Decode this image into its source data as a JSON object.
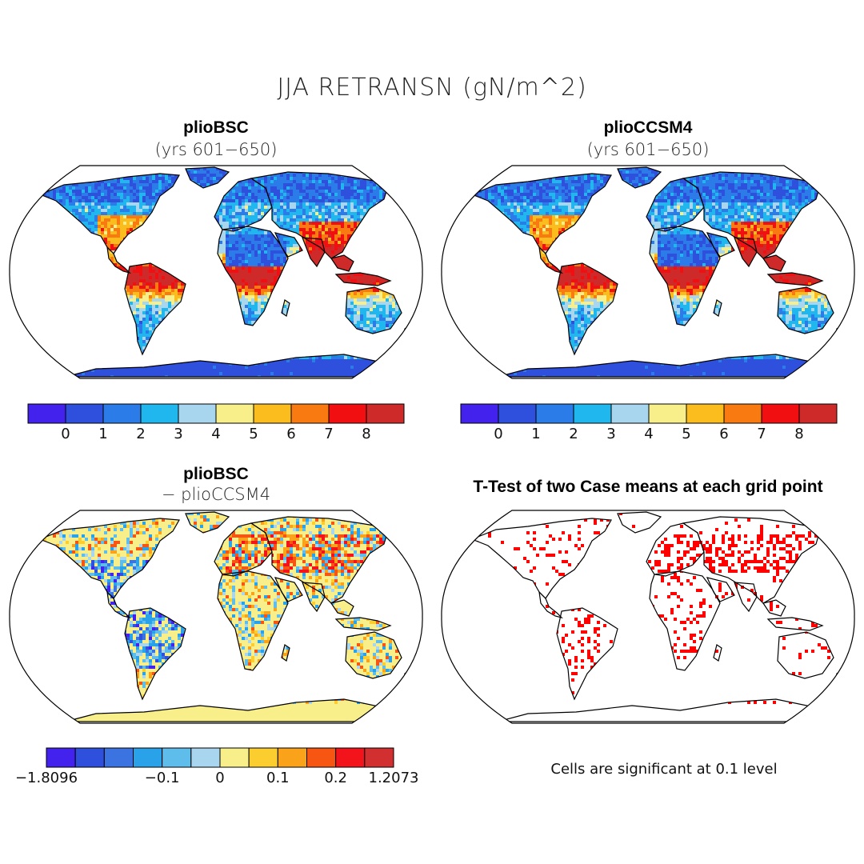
{
  "title": "JJA RETRANSN (gN/m^2)",
  "panels": [
    {
      "id": "bsc",
      "title": "plioBSC",
      "subtitle": "(yrs 601−650)"
    },
    {
      "id": "ccsm4",
      "title": "plioCCSM4",
      "subtitle": "(yrs 601−650)"
    },
    {
      "id": "diff",
      "title": "plioBSC",
      "subtitle": "− plioCCSM4"
    },
    {
      "id": "ttest",
      "title": "T-Test of two Case means at each grid point",
      "subtitle": ""
    }
  ],
  "colorbar_abs": {
    "colors": [
      "#4422ee",
      "#2f4fdd",
      "#2b7ce8",
      "#20b6ee",
      "#a8d6ef",
      "#f8ef8a",
      "#fbbd1e",
      "#f97a10",
      "#f20f12",
      "#cf2a2a"
    ],
    "labels": [
      "0",
      "1",
      "2",
      "3",
      "4",
      "5",
      "6",
      "7",
      "8"
    ]
  },
  "colorbar_diff": {
    "colors": [
      "#4422ee",
      "#2f4fdd",
      "#3b74e0",
      "#2aa2ea",
      "#5fbdeb",
      "#a8d6ef",
      "#f8ef8a",
      "#fbcd2e",
      "#f9a21a",
      "#f75512",
      "#f2141a",
      "#d23030"
    ],
    "labels": [
      "−1.8096",
      "−0.1",
      "0",
      "0.1",
      "0.2",
      "1.2073"
    ]
  },
  "ttest_note": "Cells are significant at 0.1 level",
  "colors": {
    "ocean": "#ffffff",
    "significant": "#ff0000"
  }
}
